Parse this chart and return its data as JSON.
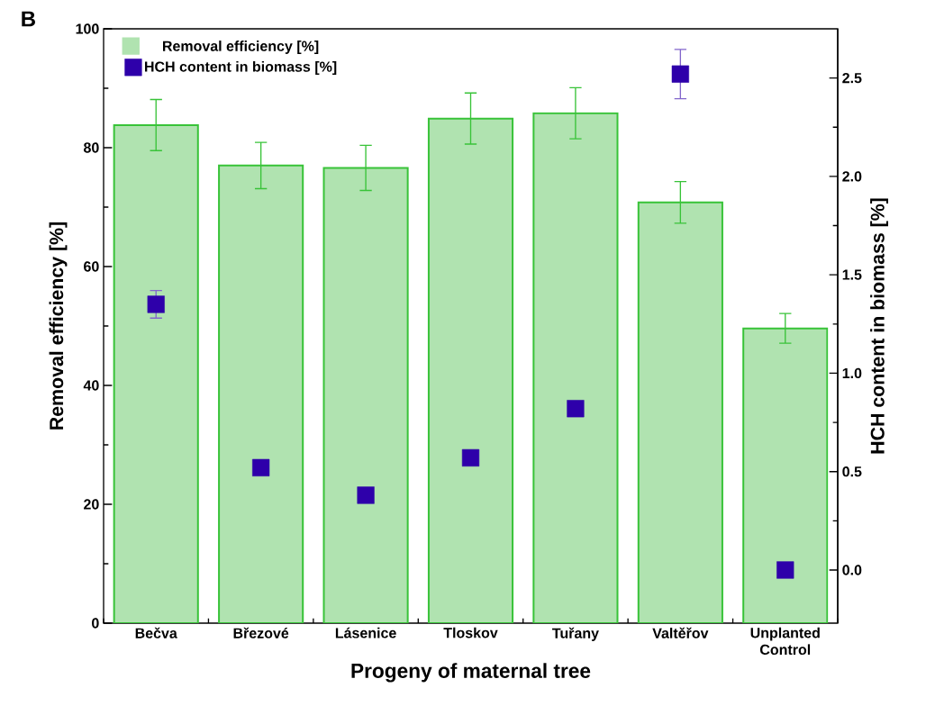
{
  "chart_data": {
    "type": "bar",
    "annotations": [
      "B"
    ],
    "categories": [
      "Bečva",
      "Březové",
      "Lásenice",
      "Tloskov",
      "Tuřany",
      "Valtěřov",
      "Unplanted Control"
    ],
    "series": [
      {
        "name": "Removal efficiency [%]",
        "color": "#b0e3b0",
        "values": [
          83.8,
          77.0,
          76.6,
          84.9,
          85.8,
          70.8,
          49.6
        ],
        "errors": [
          4.3,
          3.9,
          3.8,
          4.3,
          4.3,
          3.5,
          2.5
        ]
      },
      {
        "name": "HCH content in biomass [%]",
        "type": "scatter",
        "axis": "y2",
        "color": "#2e00aa",
        "values": [
          1.35,
          0.52,
          0.38,
          0.57,
          0.82,
          2.52,
          0.0
        ],
        "errors": [
          0.07,
          null,
          null,
          null,
          null,
          0.125,
          null
        ]
      }
    ],
    "xlabel": "Progeny of maternal tree",
    "ylabel": "Removal efficiency [%]",
    "y2label": "HCH content in biomass [%]",
    "ylim": [
      0,
      100
    ],
    "yticks": [
      0,
      20,
      40,
      60,
      80,
      100
    ],
    "y2lim": [
      -0.27,
      2.75
    ],
    "y2ticks": [
      {
        "value": 0,
        "label": "0.0"
      },
      {
        "value": 0.5,
        "label": "0.5"
      },
      {
        "value": 1,
        "label": "1.0"
      },
      {
        "value": 1.5,
        "label": "1.5"
      },
      {
        "value": 2,
        "label": "2.0"
      },
      {
        "value": 2.5,
        "label": "2.5"
      }
    ],
    "legend": "top left",
    "marker": "square"
  }
}
